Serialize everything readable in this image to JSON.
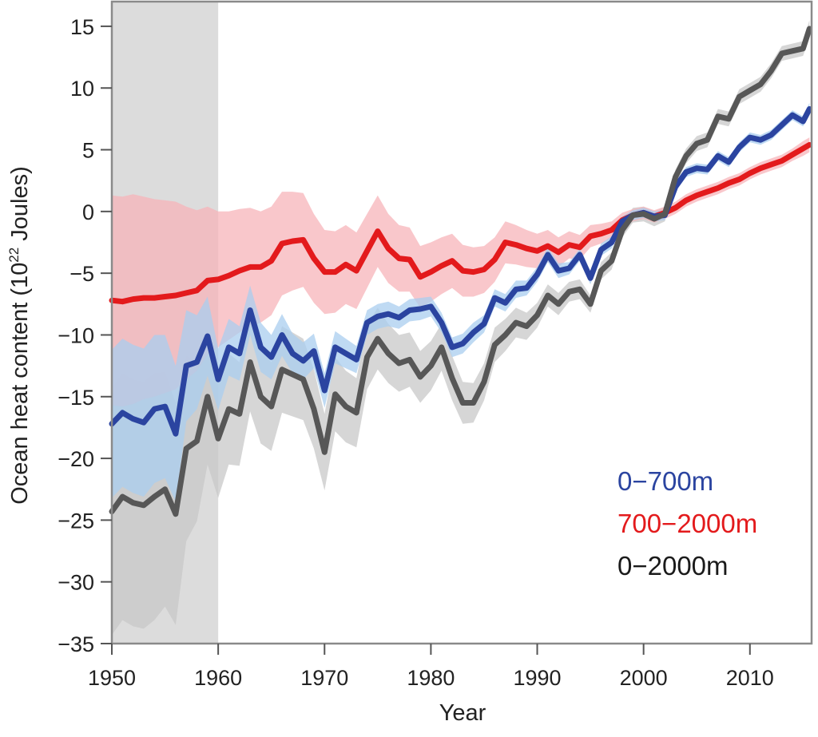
{
  "chart_data": {
    "type": "line",
    "xlabel": "Year",
    "ylabel_main": "Ocean heat content (10",
    "ylabel_sup": "22",
    "ylabel_tail": " Joules)",
    "xlim": [
      1950,
      2015.8
    ],
    "ylim": [
      -35,
      17
    ],
    "xticks": [
      1950,
      1960,
      1970,
      1980,
      1990,
      2000,
      2010
    ],
    "yticks": [
      15,
      10,
      5,
      0,
      -5,
      -10,
      -15,
      -20,
      -25,
      -30,
      -35
    ],
    "ytick_labels": [
      "15",
      "10",
      "5",
      "0",
      "−5",
      "−10",
      "−15",
      "−20",
      "−25",
      "−30",
      "−35"
    ],
    "shaded_period": [
      1950,
      1960
    ],
    "grid": false,
    "legend_position": "lower-right",
    "series": [
      {
        "name": "700−2000m",
        "color": "#e31a1c",
        "band_color": "#f7b4ba",
        "x": [
          1950,
          1951,
          1952,
          1953,
          1954,
          1955,
          1956,
          1957,
          1958,
          1959,
          1960,
          1961,
          1962,
          1963,
          1964,
          1965,
          1966,
          1967,
          1968,
          1969,
          1970,
          1971,
          1972,
          1973,
          1974,
          1975,
          1976,
          1977,
          1978,
          1979,
          1980,
          1981,
          1982,
          1983,
          1984,
          1985,
          1986,
          1987,
          1988,
          1989,
          1990,
          1991,
          1992,
          1993,
          1994,
          1995,
          1996,
          1997,
          1998,
          1999,
          2000,
          2001,
          2002,
          2003,
          2004,
          2005,
          2006,
          2007,
          2008,
          2009,
          2010,
          2011,
          2012,
          2013,
          2014,
          2015,
          2015.6
        ],
        "values": [
          -7.2,
          -7.3,
          -7.1,
          -7.0,
          -7.0,
          -6.9,
          -6.8,
          -6.6,
          -6.4,
          -5.6,
          -5.5,
          -5.2,
          -4.8,
          -4.5,
          -4.5,
          -4.0,
          -2.6,
          -2.4,
          -2.3,
          -3.8,
          -4.9,
          -4.9,
          -4.3,
          -4.8,
          -3.2,
          -1.6,
          -3.0,
          -3.8,
          -3.9,
          -5.3,
          -4.9,
          -4.4,
          -4.0,
          -4.8,
          -4.9,
          -4.7,
          -3.9,
          -2.5,
          -2.7,
          -3.0,
          -3.2,
          -2.8,
          -3.3,
          -2.7,
          -2.9,
          -2.0,
          -1.8,
          -1.5,
          -0.7,
          -0.3,
          -0.1,
          -0.4,
          -0.1,
          0.3,
          0.9,
          1.3,
          1.6,
          1.9,
          2.3,
          2.6,
          3.1,
          3.5,
          3.8,
          4.1,
          4.6,
          5.1,
          5.4
        ],
        "band_halfwidth": [
          8.5,
          8.5,
          8.5,
          8.2,
          8.0,
          7.8,
          7.6,
          7.0,
          6.5,
          6.0,
          5.5,
          5.2,
          5.0,
          4.8,
          4.5,
          4.4,
          4.2,
          4.0,
          3.8,
          3.6,
          3.4,
          3.3,
          3.2,
          3.1,
          3.0,
          2.9,
          2.8,
          2.7,
          2.6,
          2.5,
          2.4,
          2.3,
          2.2,
          2.1,
          2.0,
          1.9,
          1.8,
          1.7,
          1.6,
          1.5,
          1.4,
          1.3,
          1.2,
          1.1,
          1.0,
          0.9,
          0.8,
          0.7,
          0.6,
          0.5,
          0.5,
          0.5,
          0.5,
          0.5,
          0.5,
          0.5,
          0.5,
          0.5,
          0.5,
          0.5,
          0.5,
          0.5,
          0.5,
          0.5,
          0.5,
          0.6,
          0.6
        ]
      },
      {
        "name": "0−700m",
        "color": "#2b44a0",
        "band_color": "#a9cdef",
        "x": [
          1950,
          1951,
          1952,
          1953,
          1954,
          1955,
          1956,
          1957,
          1958,
          1959,
          1960,
          1961,
          1962,
          1963,
          1964,
          1965,
          1966,
          1967,
          1968,
          1969,
          1970,
          1971,
          1972,
          1973,
          1974,
          1975,
          1976,
          1977,
          1978,
          1979,
          1980,
          1981,
          1982,
          1983,
          1984,
          1985,
          1986,
          1987,
          1988,
          1989,
          1990,
          1991,
          1992,
          1993,
          1994,
          1995,
          1996,
          1997,
          1998,
          1999,
          2000,
          2001,
          2002,
          2003,
          2004,
          2005,
          2006,
          2007,
          2008,
          2009,
          2010,
          2011,
          2012,
          2013,
          2014,
          2015,
          2015.6
        ],
        "values": [
          -17.2,
          -16.3,
          -16.8,
          -17.1,
          -16.0,
          -15.8,
          -18.0,
          -12.5,
          -12.2,
          -10.1,
          -13.6,
          -11.0,
          -11.5,
          -8.0,
          -11.0,
          -11.8,
          -10.0,
          -11.5,
          -12.1,
          -11.3,
          -14.5,
          -11.0,
          -11.5,
          -12.0,
          -9.0,
          -8.5,
          -8.3,
          -8.6,
          -8.0,
          -7.9,
          -7.7,
          -9.0,
          -11.0,
          -10.7,
          -9.8,
          -9.1,
          -7.0,
          -7.4,
          -6.3,
          -6.2,
          -5.1,
          -3.5,
          -4.8,
          -4.6,
          -3.5,
          -5.4,
          -3.1,
          -2.5,
          -0.8,
          -0.3,
          -0.1,
          -0.4,
          -0.3,
          2.0,
          3.2,
          3.5,
          3.4,
          4.5,
          4.0,
          5.2,
          6.0,
          5.8,
          6.2,
          7.0,
          7.8,
          7.3,
          8.3
        ],
        "band_halfwidth": [
          6.0,
          6.0,
          6.0,
          6.0,
          6.0,
          5.8,
          5.5,
          4.5,
          3.8,
          3.2,
          2.5,
          2.3,
          2.2,
          2.0,
          2.0,
          1.8,
          1.7,
          1.6,
          1.5,
          1.4,
          1.4,
          1.3,
          1.2,
          1.1,
          1.0,
          1.0,
          1.0,
          0.9,
          0.9,
          0.9,
          0.8,
          0.8,
          0.8,
          0.8,
          0.8,
          0.7,
          0.7,
          0.7,
          0.7,
          0.6,
          0.6,
          0.6,
          0.6,
          0.5,
          0.5,
          0.5,
          0.5,
          0.5,
          0.4,
          0.4,
          0.4,
          0.4,
          0.4,
          0.4,
          0.4,
          0.4,
          0.4,
          0.4,
          0.4,
          0.4,
          0.4,
          0.4,
          0.4,
          0.4,
          0.4,
          0.4,
          0.5
        ]
      },
      {
        "name": "0−2000m",
        "color": "#575757",
        "band_color": "#c8c8c8",
        "x": [
          1950,
          1951,
          1952,
          1953,
          1954,
          1955,
          1956,
          1957,
          1958,
          1959,
          1960,
          1961,
          1962,
          1963,
          1964,
          1965,
          1966,
          1967,
          1968,
          1969,
          1970,
          1971,
          1972,
          1973,
          1974,
          1975,
          1976,
          1977,
          1978,
          1979,
          1980,
          1981,
          1982,
          1983,
          1984,
          1985,
          1986,
          1987,
          1988,
          1989,
          1990,
          1991,
          1992,
          1993,
          1994,
          1995,
          1996,
          1997,
          1998,
          1999,
          2000,
          2001,
          2002,
          2003,
          2004,
          2005,
          2006,
          2007,
          2008,
          2009,
          2010,
          2011,
          2012,
          2013,
          2014,
          2015,
          2015.6
        ],
        "values": [
          -24.3,
          -23.1,
          -23.6,
          -23.8,
          -23.1,
          -22.5,
          -24.5,
          -19.2,
          -18.6,
          -15.0,
          -18.4,
          -16.0,
          -16.4,
          -12.2,
          -15.0,
          -15.8,
          -12.8,
          -13.2,
          -13.6,
          -16.0,
          -19.5,
          -14.8,
          -15.8,
          -16.3,
          -11.8,
          -10.3,
          -11.5,
          -12.3,
          -12.0,
          -13.4,
          -12.5,
          -11.0,
          -13.5,
          -15.5,
          -15.5,
          -13.8,
          -10.8,
          -10.0,
          -9.0,
          -9.3,
          -8.4,
          -6.8,
          -7.5,
          -6.5,
          -6.3,
          -7.5,
          -4.8,
          -4.0,
          -1.5,
          -0.3,
          -0.2,
          -0.6,
          -0.2,
          2.8,
          4.5,
          5.5,
          5.8,
          7.7,
          7.5,
          9.3,
          9.8,
          10.3,
          11.4,
          12.8,
          13.0,
          13.2,
          14.8
        ],
        "band_halfwidth": [
          10.0,
          10.0,
          10.0,
          10.0,
          10.0,
          9.5,
          9.0,
          7.5,
          6.5,
          5.5,
          4.8,
          4.5,
          4.2,
          4.0,
          3.8,
          3.6,
          3.5,
          3.4,
          3.3,
          3.2,
          3.1,
          3.0,
          2.9,
          2.8,
          2.6,
          2.5,
          2.4,
          2.3,
          2.2,
          2.1,
          2.0,
          1.9,
          1.8,
          1.7,
          1.6,
          1.5,
          1.4,
          1.3,
          1.2,
          1.1,
          1.0,
          0.9,
          0.9,
          0.8,
          0.8,
          0.7,
          0.7,
          0.7,
          0.6,
          0.6,
          0.6,
          0.6,
          0.6,
          0.6,
          0.6,
          0.6,
          0.6,
          0.6,
          0.6,
          0.6,
          0.6,
          0.6,
          0.6,
          0.6,
          0.6,
          0.6,
          0.7
        ]
      }
    ],
    "legend": [
      {
        "label": "0−700m",
        "color": "#2b44a0"
      },
      {
        "label": "700−2000m",
        "color": "#e31a1c"
      },
      {
        "label": "0−2000m",
        "color": "#1a1a1a"
      }
    ]
  }
}
